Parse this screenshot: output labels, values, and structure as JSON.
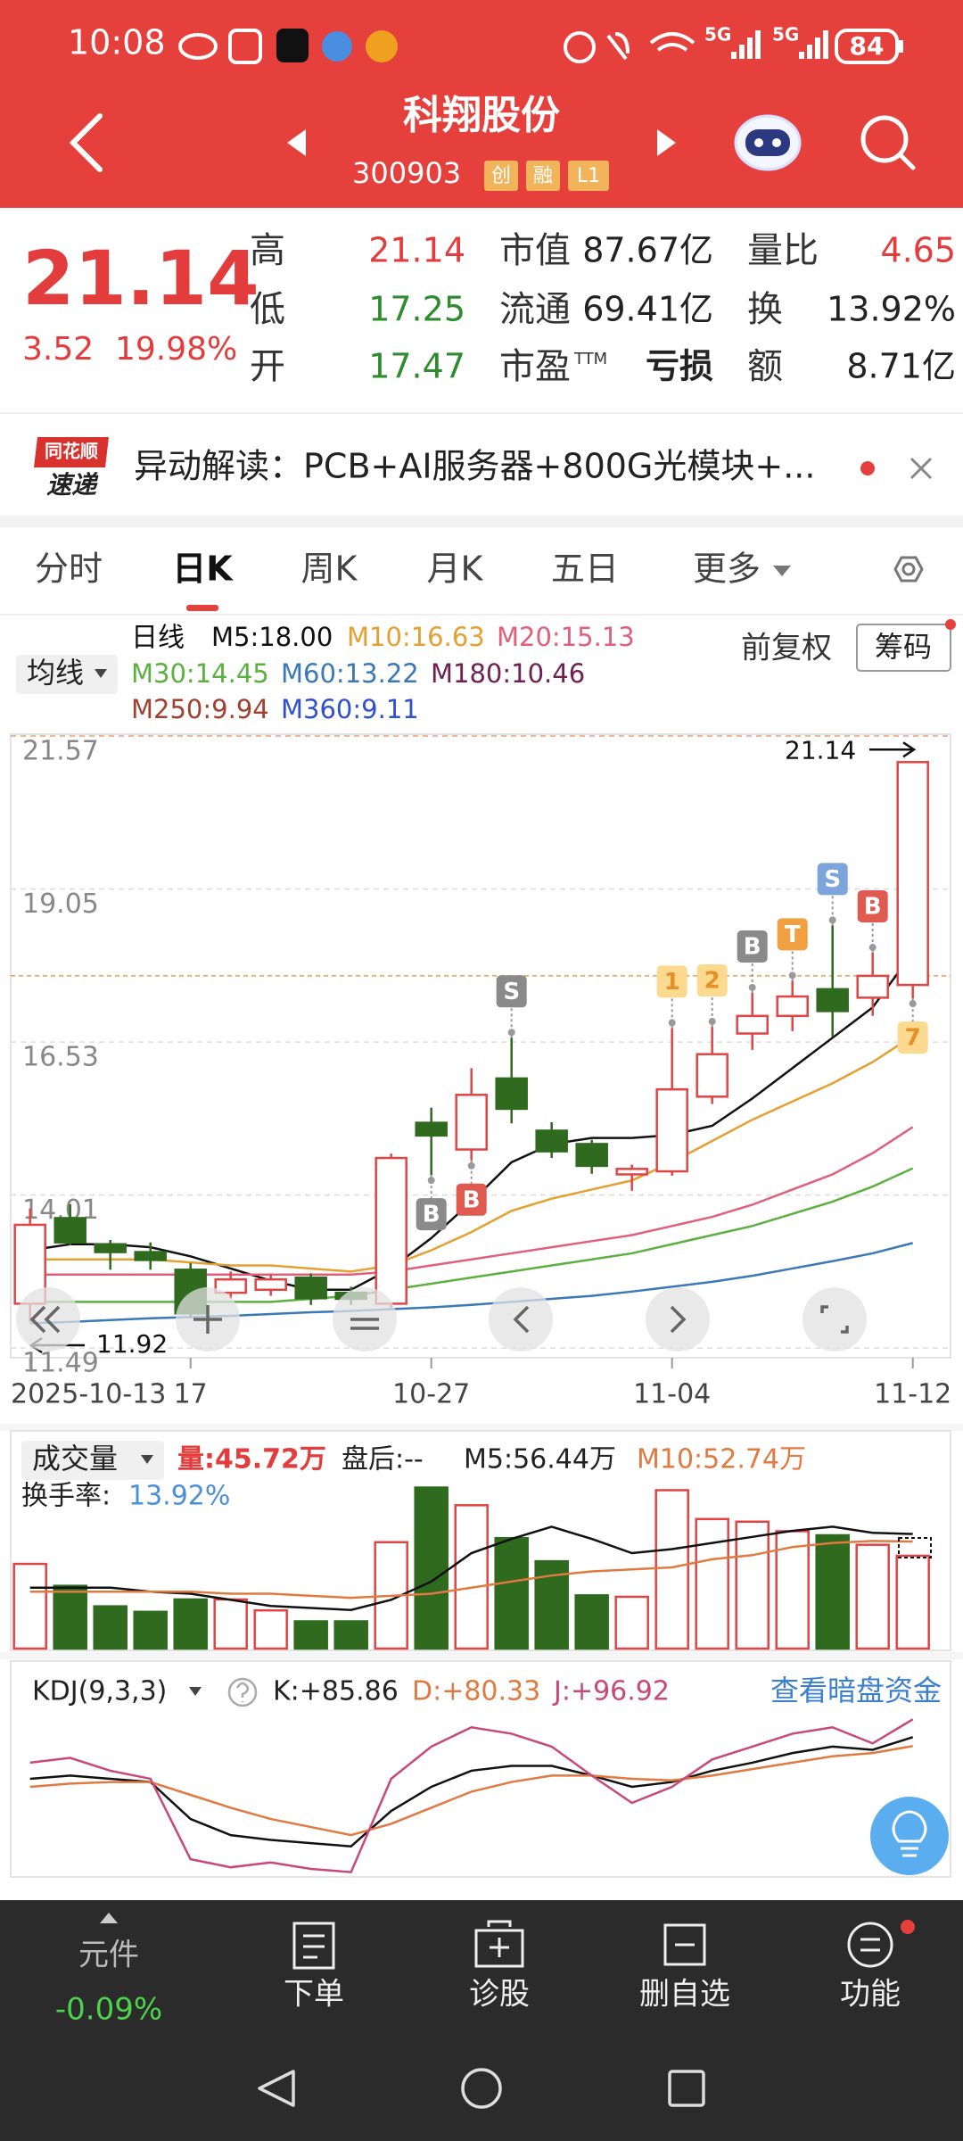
{
  "status": {
    "time": "10:08",
    "net1": "5G",
    "net2": "5G",
    "battery": "84"
  },
  "header": {
    "name": "科翔股份",
    "code": "300903",
    "tags": [
      "创",
      "融",
      "L1"
    ]
  },
  "quote": {
    "price": "21.14",
    "change": "3.52",
    "change_pct": "19.98%",
    "fields": [
      [
        {
          "label": "高",
          "value": "21.14",
          "color": "#e23c3c"
        },
        {
          "label": "市值",
          "value": "87.67亿",
          "color": "#222222"
        },
        {
          "label": "量比",
          "value": "4.65",
          "color": "#e23c3c"
        }
      ],
      [
        {
          "label": "低",
          "value": "17.25",
          "color": "#2e8b2e"
        },
        {
          "label": "流通",
          "value": "69.41亿",
          "color": "#222222"
        },
        {
          "label": "换",
          "value": "13.92%",
          "color": "#222222"
        }
      ],
      [
        {
          "label": "开",
          "value": "17.47",
          "color": "#2e8b2e"
        },
        {
          "label": "市盈",
          "sup": "TTM",
          "value": "亏损",
          "color": "#222222"
        },
        {
          "label": "额",
          "value": "8.71亿",
          "color": "#222222"
        }
      ]
    ]
  },
  "banner": {
    "logo_top": "同花顺",
    "logo_bottom": "速递",
    "text": "异动解读：PCB+AI服务器+800G光模块+..."
  },
  "tabs": {
    "items": [
      "分时",
      "日K",
      "周K",
      "月K",
      "五日",
      "更多"
    ],
    "active": 1
  },
  "chart_data": [
    {
      "type": "candlestick",
      "indicator": "均线",
      "title": "日线",
      "adjust": "前复权",
      "chip": "筹码",
      "categories": [
        "2025-10-13",
        null,
        null,
        null,
        "17",
        null,
        null,
        null,
        null,
        null,
        "10-27",
        null,
        null,
        null,
        null,
        null,
        "11-04",
        null,
        null,
        null,
        null,
        null,
        "11-12"
      ],
      "open": [
        12.22,
        13.63,
        13.2,
        13.07,
        12.78,
        12.4,
        12.45,
        12.65,
        12.4,
        12.22,
        15.2,
        14.76,
        15.93,
        15.07,
        14.85,
        14.35,
        14.4,
        15.63,
        16.67,
        16.96,
        17.4,
        17.26,
        17.47
      ],
      "high": [
        13.79,
        13.86,
        13.27,
        13.23,
        12.89,
        12.75,
        12.7,
        12.72,
        12.5,
        14.69,
        15.45,
        16.1,
        16.6,
        15.21,
        14.92,
        14.51,
        16.76,
        16.78,
        17.34,
        17.54,
        18.45,
        18.0,
        21.14
      ],
      "low": [
        11.92,
        13.18,
        12.78,
        12.78,
        11.99,
        12.3,
        12.35,
        12.2,
        12.2,
        12.15,
        14.34,
        14.58,
        15.19,
        14.62,
        14.36,
        14.08,
        14.33,
        15.51,
        16.4,
        16.71,
        16.62,
        16.96,
        17.25
      ],
      "close": [
        13.52,
        13.23,
        13.07,
        12.94,
        12.06,
        12.62,
        12.62,
        12.31,
        12.3,
        14.62,
        14.99,
        15.66,
        15.43,
        14.73,
        14.49,
        14.44,
        15.75,
        16.33,
        16.96,
        17.28,
        17.04,
        17.62,
        21.14
      ],
      "up_color": "#e04444",
      "down_color": "#2f6a1f",
      "series": [
        {
          "name": "M5:18.00",
          "color": "#111111",
          "values": [
            13.1,
            13.2,
            13.2,
            13.15,
            13.0,
            12.8,
            12.6,
            12.45,
            12.45,
            12.8,
            13.3,
            13.9,
            14.55,
            14.85,
            14.95,
            14.95,
            15.0,
            15.15,
            15.6,
            16.1,
            16.6,
            17.1,
            18.0
          ]
        },
        {
          "name": "M10:16.63",
          "color": "#e4a030",
          "values": [
            12.95,
            12.95,
            12.95,
            12.95,
            12.9,
            12.85,
            12.85,
            12.8,
            12.75,
            12.85,
            13.1,
            13.4,
            13.75,
            13.95,
            14.1,
            14.25,
            14.55,
            14.9,
            15.25,
            15.55,
            15.85,
            16.2,
            16.63
          ]
        },
        {
          "name": "M20:15.13",
          "color": "#e0607c",
          "values": [
            12.7,
            12.7,
            12.7,
            12.7,
            12.7,
            12.7,
            12.7,
            12.7,
            12.7,
            12.75,
            12.85,
            12.95,
            13.05,
            13.15,
            13.25,
            13.35,
            13.5,
            13.65,
            13.85,
            14.1,
            14.35,
            14.7,
            15.13
          ]
        },
        {
          "name": "M30:14.45",
          "color": "#5cb040",
          "values": [
            12.25,
            12.25,
            12.25,
            12.25,
            12.25,
            12.25,
            12.25,
            12.3,
            12.35,
            12.45,
            12.55,
            12.65,
            12.75,
            12.85,
            12.95,
            13.05,
            13.2,
            13.35,
            13.5,
            13.7,
            13.9,
            14.15,
            14.45
          ]
        },
        {
          "name": "M60:13.22",
          "color": "#3a78b8",
          "values": [
            11.9,
            11.92,
            11.95,
            11.98,
            12.0,
            12.02,
            12.05,
            12.08,
            12.1,
            12.13,
            12.16,
            12.2,
            12.25,
            12.3,
            12.35,
            12.42,
            12.5,
            12.58,
            12.68,
            12.8,
            12.92,
            13.05,
            13.22
          ]
        }
      ],
      "legend_extra": [
        {
          "name": "M180:10.46",
          "color": "#702050"
        },
        {
          "name": "M250:9.94",
          "color": "#a04030"
        },
        {
          "name": "M360:9.11",
          "color": "#3050d0"
        }
      ],
      "ylim": [
        11.33,
        21.6
      ],
      "yticks": [
        21.57,
        19.05,
        16.53,
        14.01,
        11.49
      ],
      "prev_close": 17.62,
      "high_label": 21.14,
      "low_label": 11.92,
      "signals_above": [
        null,
        null,
        null,
        null,
        null,
        null,
        null,
        null,
        null,
        null,
        null,
        null,
        {
          "label": "S",
          "color": "#8a8a8a"
        },
        null,
        null,
        null,
        {
          "label": "1",
          "color": "#fbd98e"
        },
        {
          "label": "2",
          "color": "#fbd98e"
        },
        {
          "label": "B",
          "color": "#8a8a8a"
        },
        {
          "label": "T",
          "color": "#f0a040"
        },
        {
          "label": "S",
          "color": "#7ea4dc"
        },
        {
          "label": "B",
          "color": "#e05a50"
        },
        null
      ],
      "signals_below": [
        null,
        null,
        null,
        null,
        null,
        null,
        null,
        null,
        null,
        null,
        {
          "label": "B",
          "color": "#8a8a8a"
        },
        {
          "label": "B",
          "color": "#e05a50"
        },
        null,
        null,
        null,
        null,
        null,
        null,
        null,
        null,
        null,
        null,
        {
          "label": "7",
          "color": "#fbd98e"
        }
      ]
    },
    {
      "type": "bar",
      "title": "成交量",
      "current_label": "量:45.72万",
      "after_hours": "盘后:--",
      "turnover_label": "换手率:",
      "turnover": "13.92%",
      "values": [
        41.7,
        30.9,
        20.8,
        18.1,
        24.2,
        24.2,
        18.8,
        13.4,
        13.4,
        52.4,
        79.3,
        70.6,
        54.4,
        43.0,
        26.2,
        25.5,
        78.0,
        63.8,
        62.5,
        57.8,
        55.8,
        51.1,
        45.72
      ],
      "series": [
        {
          "name": "M5:56.44万",
          "color": "#111111",
          "values": [
            30,
            30,
            30,
            28,
            27,
            24,
            21,
            20,
            19,
            24,
            33,
            47,
            54,
            60,
            54,
            47,
            49,
            52,
            55,
            58,
            60,
            57,
            56.44
          ]
        },
        {
          "name": "M10:52.74万",
          "color": "#e07a40",
          "values": [
            28,
            28,
            28,
            28,
            28,
            27,
            27,
            26,
            25,
            26,
            27,
            30,
            33,
            36,
            38,
            39,
            40,
            44,
            46,
            50,
            52,
            53,
            52.74
          ]
        }
      ],
      "ylim": [
        0,
        82.6
      ]
    },
    {
      "type": "line",
      "title": "KDJ(9,3,3)",
      "link": "查看暗盘资金",
      "series": [
        {
          "name": "K:+85.86",
          "color": "#111111",
          "values": [
            60,
            62,
            60,
            58,
            35,
            25,
            22,
            20,
            18,
            40,
            55,
            65,
            68,
            68,
            62,
            55,
            58,
            65,
            70,
            76,
            80,
            78,
            85.86
          ]
        },
        {
          "name": "D:+80.33",
          "color": "#e07a40",
          "values": [
            55,
            57,
            58,
            58,
            50,
            42,
            35,
            30,
            25,
            32,
            42,
            52,
            58,
            62,
            62,
            60,
            59,
            62,
            66,
            70,
            74,
            76,
            80.33
          ]
        },
        {
          "name": "J:+96.92",
          "color": "#c8487a",
          "values": [
            70,
            73,
            65,
            60,
            10,
            5,
            8,
            4,
            2,
            60,
            80,
            92,
            88,
            80,
            62,
            45,
            55,
            72,
            80,
            88,
            92,
            82,
            96.92
          ]
        }
      ],
      "ylim": [
        -1,
        101
      ]
    }
  ],
  "bottom_bar": {
    "sector": "元件",
    "sector_change": "-0.09%",
    "items": [
      "下单",
      "诊股",
      "删自选",
      "功能"
    ]
  }
}
